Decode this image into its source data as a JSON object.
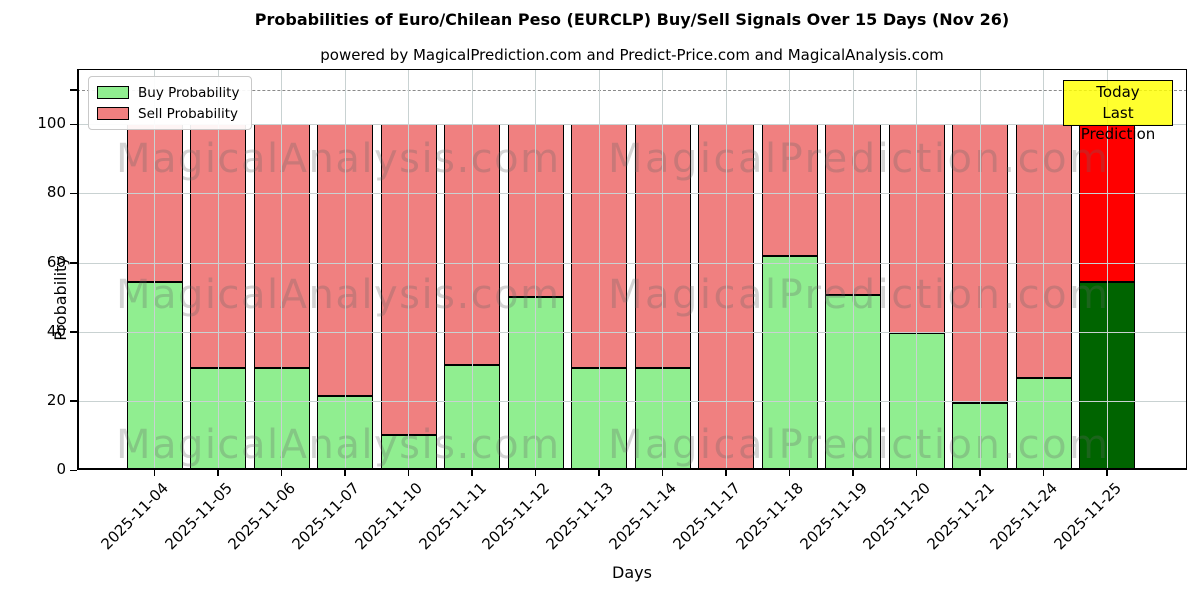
{
  "title": "Probabilities of Euro/Chilean Peso (EURCLP) Buy/Sell Signals Over 15 Days (Nov 26)",
  "subtitle": "powered by MagicalPrediction.com and Predict-Price.com and MagicalAnalysis.com",
  "annotation_box": {
    "line1": "Today",
    "line2": "Last Prediction"
  },
  "watermark": {
    "left_text": "MagicalAnalysis.com",
    "right_text": "MagicalPrediction.com"
  },
  "legend": {
    "buy_label": "Buy Probability",
    "sell_label": "Sell Probability"
  },
  "colors": {
    "buy": "#90EE90",
    "sell": "#F08080",
    "today_buy": "#006400",
    "today_sell": "#FF0000",
    "annotation_bg": "#FFFF00",
    "grid": "#c9d2d2",
    "dashed_line": "#8a8a8a"
  },
  "chart_data": {
    "type": "bar",
    "stacked": true,
    "title": "Probabilities of Euro/Chilean Peso (EURCLP) Buy/Sell Signals Over 15 Days (Nov 26)",
    "subtitle": "powered by MagicalPrediction.com and Predict-Price.com and MagicalAnalysis.com",
    "xlabel": "Days",
    "ylabel": "Probability",
    "categories": [
      "2025-11-04",
      "2025-11-05",
      "2025-11-06",
      "2025-11-07",
      "2025-11-10",
      "2025-11-11",
      "2025-11-12",
      "2025-11-13",
      "2025-11-14",
      "2025-11-17",
      "2025-11-18",
      "2025-11-19",
      "2025-11-20",
      "2025-11-21",
      "2025-11-24",
      "2025-11-25"
    ],
    "series": [
      {
        "name": "Buy Probability",
        "color": "#90EE90",
        "values": [
          54.5,
          29.5,
          29.5,
          21.5,
          10,
          30.5,
          50,
          29.5,
          29.5,
          0,
          62,
          50.5,
          39.5,
          19.5,
          26.5,
          54.5
        ]
      },
      {
        "name": "Sell Probability",
        "color": "#F08080",
        "values": [
          45.5,
          70.5,
          70.5,
          78.5,
          90,
          69.5,
          50,
          70.5,
          70.5,
          100,
          38,
          49.5,
          60.5,
          80.5,
          73.5,
          45.5
        ]
      }
    ],
    "today": {
      "index": 15,
      "category": "2025-11-25",
      "buy_color": "#006400",
      "sell_color": "#FF0000",
      "label": "Today Last Prediction"
    },
    "yticks": [
      0,
      20,
      40,
      60,
      80,
      100
    ],
    "ylim": [
      0,
      116
    ],
    "dashed_line_y": 110,
    "grid": true,
    "legend_position": "upper left"
  }
}
